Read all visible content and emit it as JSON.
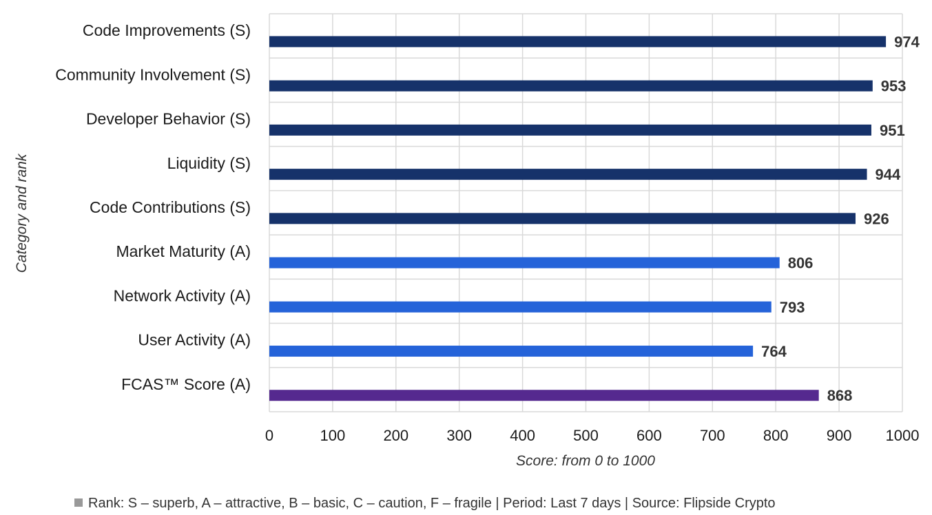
{
  "chart_data": {
    "type": "bar",
    "orientation": "horizontal",
    "categories": [
      "Code Improvements (S)",
      "Community Involvement (S)",
      "Developer Behavior (S)",
      "Liquidity (S)",
      "Code Contributions (S)",
      "Market Maturity (A)",
      "Network Activity (A)",
      "User Activity (A)",
      "FCAS™ Score (A)"
    ],
    "values": [
      974,
      953,
      951,
      944,
      926,
      806,
      793,
      764,
      868
    ],
    "bar_colors": [
      "#16326a",
      "#16326a",
      "#16326a",
      "#16326a",
      "#16326a",
      "#2563d9",
      "#2563d9",
      "#2563d9",
      "#55298f"
    ],
    "xlabel": "Score: from 0 to 1000",
    "ylabel": "Category and rank",
    "xlim": [
      0,
      1000
    ],
    "xticks": [
      0,
      100,
      200,
      300,
      400,
      500,
      600,
      700,
      800,
      900,
      1000
    ],
    "grid": true,
    "data_labels": true
  },
  "footnote": "Rank: S – superb, A – attractive, B – basic, C – caution, F – fragile | Period: Last 7 days | Source: Flipside Crypto",
  "colors": {
    "grid": "#d9d9d9",
    "footnote_marker": "#999999"
  }
}
